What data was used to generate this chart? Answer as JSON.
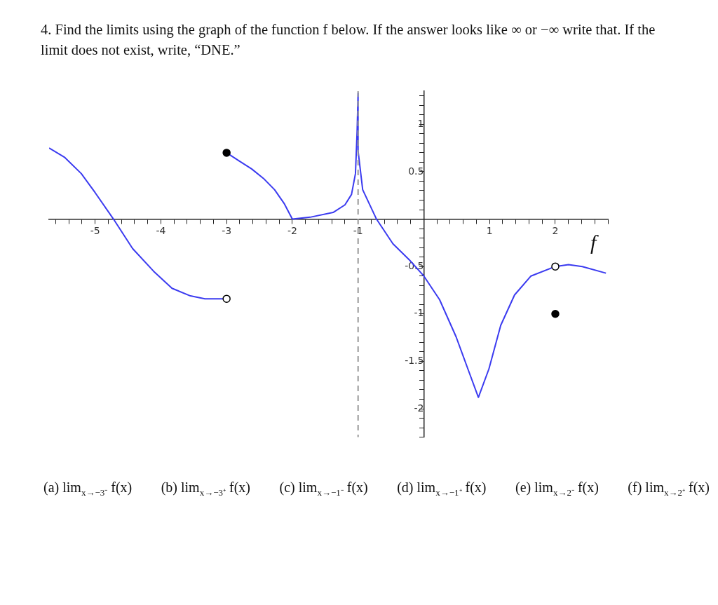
{
  "chart_data": {
    "type": "line",
    "title": "4. Find the limits using the graph of the function f below. If the answer looks like ∞ or −∞ write that. If the limit does not exist, write, “DNE.”",
    "series": [
      {
        "color": "#3b3bf0",
        "x": [
          -5.7,
          -5.46,
          -5.21,
          -5.0,
          -4.72,
          -4.43,
          -4.11,
          -3.83,
          -3.55,
          -3.33,
          -3.0
        ],
        "values": [
          0.75,
          0.65,
          0.48,
          0.28,
          0,
          -0.31,
          -0.55,
          -0.73,
          -0.81,
          -0.84,
          -0.84
        ]
      },
      {
        "color": "#3b3bf0",
        "x": [
          -3.0,
          -2.8,
          -2.62,
          -2.44,
          -2.27,
          -2.12,
          -2.0
        ],
        "values": [
          0.7,
          0.61,
          0.53,
          0.43,
          0.31,
          0.16,
          0
        ]
      },
      {
        "name": "f",
        "color": "#3b3bf0",
        "x": [
          -2.0,
          -1.73,
          -1.38,
          -1.2,
          -1.1,
          -1.04,
          -1.015,
          -1.0,
          -1.0,
          -0.93,
          -0.72,
          -0.47,
          -0.22,
          0,
          0.24,
          0.49,
          0.67,
          0.83,
          0.99,
          1.17,
          1.38,
          1.63,
          2.0,
          2.2,
          2.41,
          2.77
        ],
        "values": [
          0,
          0.02,
          0.07,
          0.15,
          0.26,
          0.48,
          0.92,
          1.33,
          0.72,
          0.31,
          0,
          -0.26,
          -0.43,
          -0.6,
          -0.85,
          -1.24,
          -1.58,
          -1.88,
          -1.58,
          -1.12,
          -0.8,
          -0.6,
          -0.5,
          -0.48,
          -0.5,
          -0.57
        ]
      },
      {
        "type": "scatter",
        "marker": "circle",
        "color": "#000000",
        "x": [
          -3,
          2
        ],
        "values": [
          0.7,
          -1.0
        ]
      },
      {
        "type": "scatter",
        "marker": "circle",
        "color": "#ffffff",
        "x": [
          -3,
          2
        ],
        "values": [
          -0.84,
          -0.5
        ]
      }
    ],
    "xlim": [
      -5.7,
      2.8
    ],
    "ylim": [
      -2.3,
      1.35
    ],
    "xticks": [
      {
        "value": -5.6,
        "label": null
      },
      {
        "value": -5.4,
        "label": null
      },
      {
        "value": -5.2,
        "label": null
      },
      -5,
      {
        "value": -4.8,
        "label": null
      },
      {
        "value": -4.6,
        "label": null
      },
      {
        "value": -4.4,
        "label": null
      },
      {
        "value": -4.2,
        "label": null
      },
      -4,
      {
        "value": -3.8,
        "label": null
      },
      {
        "value": -3.6,
        "label": null
      },
      {
        "value": -3.4,
        "label": null
      },
      {
        "value": -3.2,
        "label": null
      },
      -3,
      {
        "value": -2.8,
        "label": null
      },
      {
        "value": -2.6,
        "label": null
      },
      {
        "value": -2.4,
        "label": null
      },
      {
        "value": -2.2,
        "label": null
      },
      -2,
      {
        "value": -1.8,
        "label": null
      },
      {
        "value": -1.6,
        "label": null
      },
      {
        "value": -1.4,
        "label": null
      },
      {
        "value": -1.2,
        "label": null
      },
      -1,
      {
        "value": -0.8,
        "label": null
      },
      {
        "value": -0.6,
        "label": null
      },
      {
        "value": -0.4,
        "label": null
      },
      {
        "value": -0.2,
        "label": null
      },
      {
        "value": 0.2,
        "label": null
      },
      {
        "value": 0.4,
        "label": null
      },
      {
        "value": 0.6,
        "label": null
      },
      {
        "value": 0.8,
        "label": null
      },
      1,
      {
        "value": 1.2,
        "label": null
      },
      {
        "value": 1.4,
        "label": null
      },
      {
        "value": 1.6,
        "label": null
      },
      {
        "value": 1.8,
        "label": null
      },
      2,
      {
        "value": 2.2,
        "label": null
      },
      {
        "value": 2.4,
        "label": null
      },
      {
        "value": 2.6,
        "label": null
      },
      {
        "value": 2.8,
        "label": null
      }
    ],
    "yticks": [
      {
        "value": -2.3,
        "label": null
      },
      {
        "value": -2.2,
        "label": null
      },
      {
        "value": -2.1,
        "label": null
      },
      -2,
      {
        "value": -1.9,
        "label": null
      },
      {
        "value": -1.8,
        "label": null
      },
      {
        "value": -1.7,
        "label": null
      },
      {
        "value": -1.6,
        "label": null
      },
      -1.5,
      {
        "value": -1.4,
        "label": null
      },
      {
        "value": -1.3,
        "label": null
      },
      {
        "value": -1.2,
        "label": null
      },
      {
        "value": -1.1,
        "label": null
      },
      -1,
      {
        "value": -0.9,
        "label": null
      },
      {
        "value": -0.8,
        "label": null
      },
      {
        "value": -0.7,
        "label": null
      },
      {
        "value": -0.6,
        "label": null
      },
      -0.5,
      {
        "value": -0.4,
        "label": null
      },
      {
        "value": -0.3,
        "label": null
      },
      {
        "value": -0.2,
        "label": null
      },
      {
        "value": -0.1,
        "label": null
      },
      {
        "value": 0.1,
        "label": null
      },
      {
        "value": 0.2,
        "label": null
      },
      {
        "value": 0.3,
        "label": null
      },
      {
        "value": 0.4,
        "label": null
      },
      0.5,
      {
        "value": 0.6,
        "label": null
      },
      {
        "value": 0.7,
        "label": null
      },
      {
        "value": 0.8,
        "label": null
      },
      {
        "value": 0.9,
        "label": null
      },
      1,
      {
        "value": 1.1,
        "label": null
      },
      {
        "value": 1.2,
        "label": null
      },
      {
        "value": 1.3,
        "label": null
      }
    ],
    "ref_lines": [
      {
        "axis": "x",
        "value": -1,
        "color": "#999999",
        "line_style": "dashed"
      }
    ],
    "grid": false,
    "legend": false,
    "annotations": [
      "(a) lim$_{x→−3⁻}$ f(x)",
      "(b) lim$_{x→−3⁺}$ f(x)",
      "(c) lim$_{x→−1⁻}$ f(x)",
      "(d) lim$_{x→−1⁺}$ f(x)",
      "(e) lim$_{x→2⁻}$ f(x)",
      "(f) lim$_{x→2⁺}$ f(x)"
    ]
  }
}
